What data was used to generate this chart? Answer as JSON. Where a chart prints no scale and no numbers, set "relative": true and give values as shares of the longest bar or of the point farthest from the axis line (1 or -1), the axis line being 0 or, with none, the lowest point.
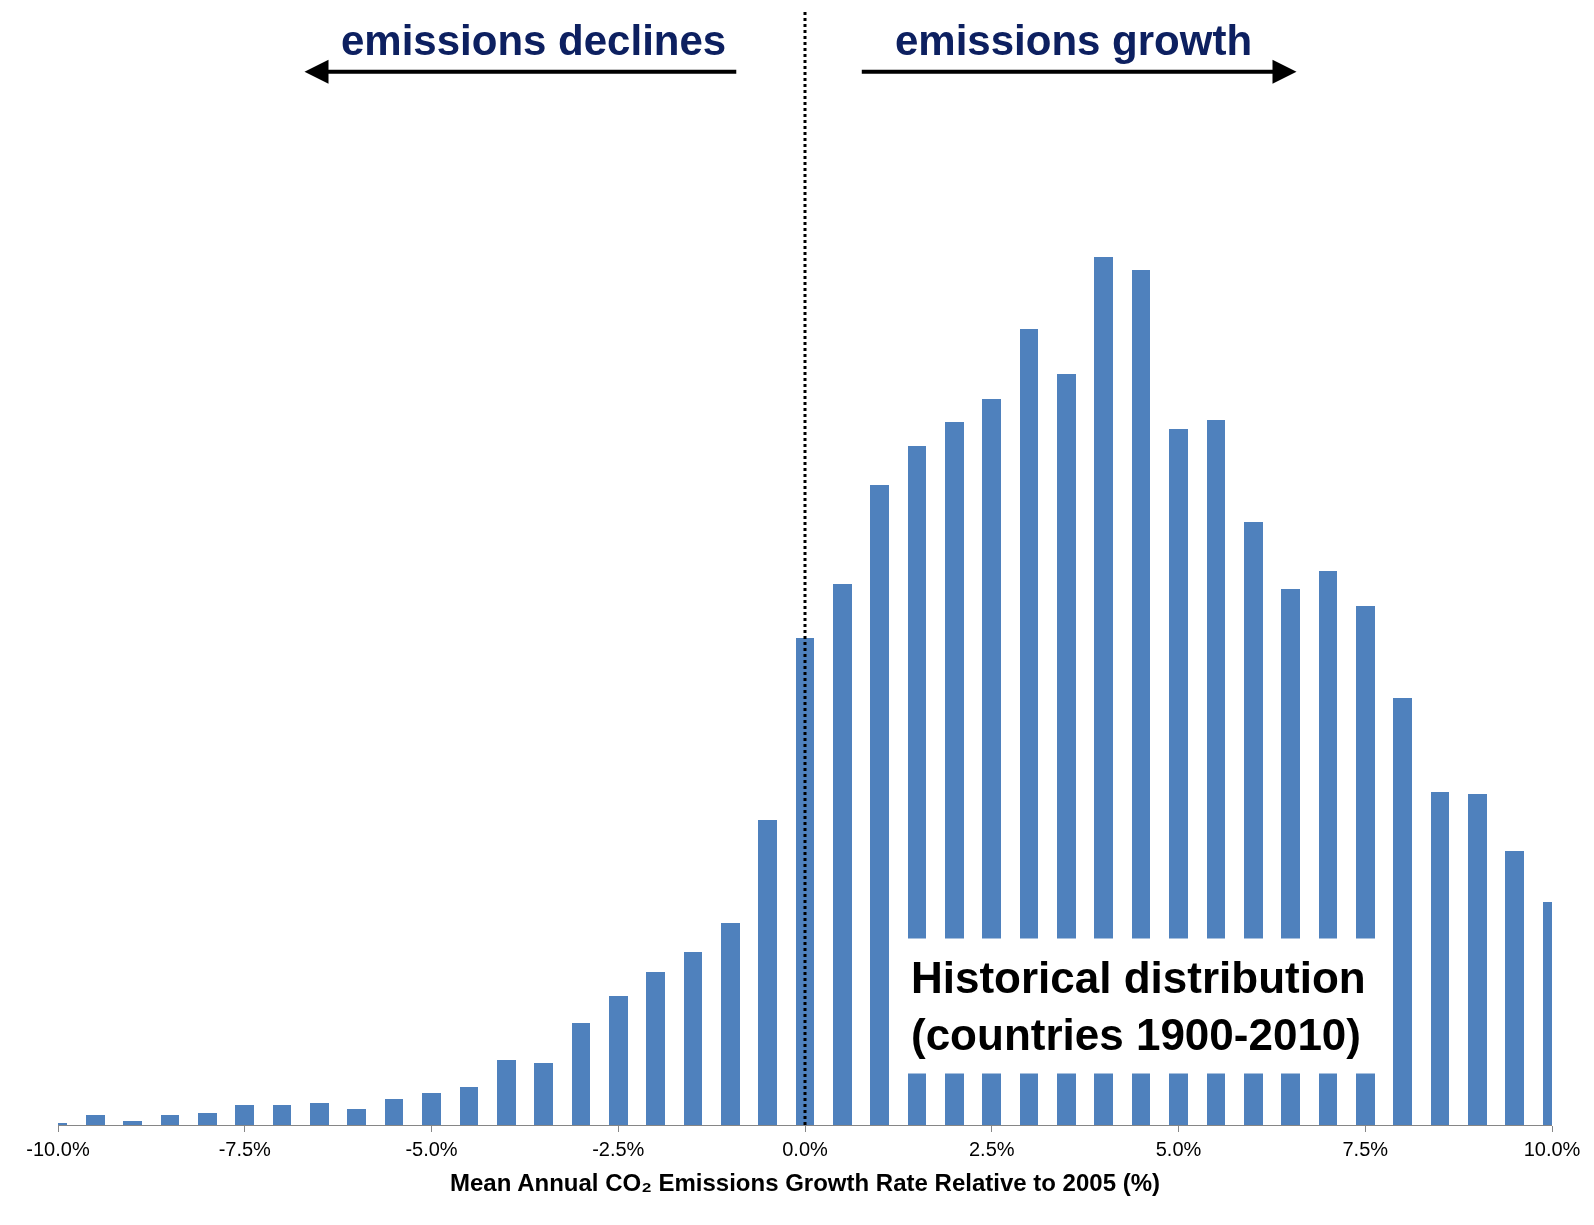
{
  "chart_data": {
    "type": "bar",
    "relative": true,
    "xlabel": "Mean Annual CO₂ Emissions Growth Rate Relative to 2005 (%)",
    "x": [
      -10.0,
      -9.5,
      -9.0,
      -8.5,
      -8.0,
      -7.5,
      -7.0,
      -6.5,
      -6.0,
      -5.5,
      -5.0,
      -4.5,
      -4.0,
      -3.5,
      -3.0,
      -2.5,
      -2.0,
      -1.5,
      -1.0,
      -0.5,
      0.0,
      0.5,
      1.0,
      1.5,
      2.0,
      2.5,
      3.0,
      3.5,
      4.0,
      4.5,
      5.0,
      5.5,
      6.0,
      6.5,
      7.0,
      7.5,
      8.0,
      8.5,
      9.0,
      9.5,
      10.0
    ],
    "values": [
      0.002,
      0.011,
      0.005,
      0.011,
      0.014,
      0.023,
      0.023,
      0.025,
      0.018,
      0.03,
      0.037,
      0.044,
      0.075,
      0.072,
      0.118,
      0.149,
      0.176,
      0.199,
      0.233,
      0.351,
      0.561,
      0.623,
      0.738,
      0.783,
      0.81,
      0.837,
      0.918,
      0.866,
      1.0,
      0.986,
      0.802,
      0.813,
      0.695,
      0.618,
      0.639,
      0.598,
      0.492,
      0.384,
      0.382,
      0.316,
      0.257
    ],
    "color": "#4f81bd",
    "xlim": [
      -10.0,
      10.0
    ],
    "xticks": [
      {
        "value": -10,
        "label": "-10.0%"
      },
      {
        "value": -7.5,
        "label": "-7.5%"
      },
      {
        "value": -5,
        "label": "-5.0%"
      },
      {
        "value": -2.5,
        "label": "-2.5%"
      },
      {
        "value": 0,
        "label": "0.0%"
      },
      {
        "value": 2.5,
        "label": "2.5%"
      },
      {
        "value": 5,
        "label": "5.0%"
      },
      {
        "value": 7.5,
        "label": "7.5%"
      },
      {
        "value": 10,
        "label": "10.0%"
      }
    ],
    "ref_lines": [
      {
        "axis": "x",
        "value": 0,
        "color": "#000000",
        "line_style": "dotted"
      }
    ],
    "annotations": [
      "emissions declines",
      "emissions growth",
      "Historical distribution\n(countries 1900-2010)"
    ]
  }
}
